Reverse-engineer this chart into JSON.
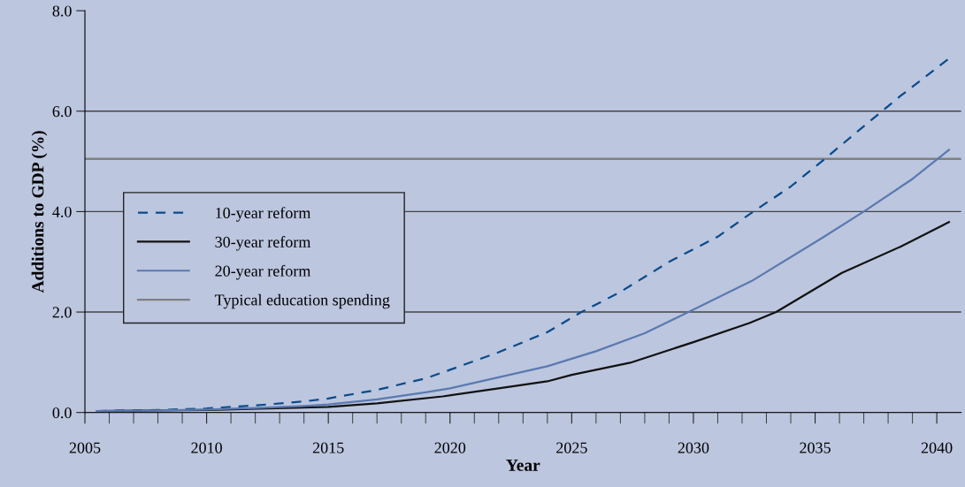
{
  "chart_data": {
    "type": "line",
    "xlabel": "Year",
    "ylabel": "Additions to GDP (%)",
    "xlim": [
      2005,
      2041
    ],
    "ylim": [
      0,
      8
    ],
    "xticks": [
      {
        "value": 2005,
        "label": "2005"
      },
      {
        "value": 2006,
        "label": null
      },
      {
        "value": 2007,
        "label": null
      },
      {
        "value": 2008,
        "label": null
      },
      {
        "value": 2009,
        "label": null
      },
      {
        "value": 2010,
        "label": "2010"
      },
      {
        "value": 2011,
        "label": null
      },
      {
        "value": 2012,
        "label": null
      },
      {
        "value": 2013,
        "label": null
      },
      {
        "value": 2014,
        "label": null
      },
      {
        "value": 2015,
        "label": "2015"
      },
      {
        "value": 2016,
        "label": null
      },
      {
        "value": 2017,
        "label": null
      },
      {
        "value": 2018,
        "label": null
      },
      {
        "value": 2019,
        "label": null
      },
      {
        "value": 2020,
        "label": "2020"
      },
      {
        "value": 2021,
        "label": null
      },
      {
        "value": 2022,
        "label": null
      },
      {
        "value": 2023,
        "label": null
      },
      {
        "value": 2024,
        "label": null
      },
      {
        "value": 2025,
        "label": "2025"
      },
      {
        "value": 2026,
        "label": null
      },
      {
        "value": 2027,
        "label": null
      },
      {
        "value": 2028,
        "label": null
      },
      {
        "value": 2029,
        "label": null
      },
      {
        "value": 2030,
        "label": "2030"
      },
      {
        "value": 2031,
        "label": null
      },
      {
        "value": 2032,
        "label": null
      },
      {
        "value": 2033,
        "label": null
      },
      {
        "value": 2034,
        "label": null
      },
      {
        "value": 2035,
        "label": "2035"
      },
      {
        "value": 2036,
        "label": null
      },
      {
        "value": 2037,
        "label": null
      },
      {
        "value": 2038,
        "label": null
      },
      {
        "value": 2039,
        "label": null
      },
      {
        "value": 2040,
        "label": "2040"
      }
    ],
    "yticks": [
      {
        "value": 0,
        "label": "0.0"
      },
      {
        "value": 2,
        "label": "2.0"
      },
      {
        "value": 4,
        "label": "4.0"
      },
      {
        "value": 6,
        "label": "6.0"
      },
      {
        "value": 8,
        "label": "8.0"
      }
    ],
    "grid": "y",
    "legend": "center left",
    "marker": "none",
    "series": [
      {
        "name": "10-year reform",
        "color": "#0a4a8a",
        "line_style": "dashed",
        "x": [
          2005.5,
          2008,
          2010,
          2012,
          2014,
          2015,
          2017,
          2019,
          2020,
          2022,
          2024,
          2025.4,
          2027,
          2029,
          2031,
          2032.4,
          2034,
          2035.4,
          2037,
          2038.5,
          2040.5
        ],
        "values": [
          0.03,
          0.05,
          0.08,
          0.14,
          0.22,
          0.28,
          0.45,
          0.68,
          0.85,
          1.2,
          1.6,
          2.0,
          2.4,
          3.0,
          3.5,
          3.98,
          4.5,
          5.05,
          5.7,
          6.3,
          7.05
        ]
      },
      {
        "name": "30-year reform",
        "color": "#111111",
        "line_style": "solid",
        "x": [
          2005.5,
          2010,
          2015,
          2017,
          2019.7,
          2022,
          2024,
          2025,
          2027.4,
          2030,
          2032.3,
          2033.4,
          2036.1,
          2038.5,
          2040.5
        ],
        "values": [
          0.03,
          0.05,
          0.11,
          0.18,
          0.32,
          0.48,
          0.62,
          0.75,
          0.99,
          1.4,
          1.78,
          2.0,
          2.78,
          3.3,
          3.79
        ]
      },
      {
        "name": "20-year reform",
        "color": "#5b79b0",
        "line_style": "solid",
        "x": [
          2005.5,
          2008,
          2010,
          2012,
          2014,
          2015,
          2017,
          2019,
          2020,
          2022,
          2024,
          2026,
          2028,
          2029.8,
          2032.4,
          2035.3,
          2037,
          2039,
          2040.5
        ],
        "values": [
          0.03,
          0.04,
          0.06,
          0.09,
          0.13,
          0.16,
          0.26,
          0.4,
          0.48,
          0.7,
          0.92,
          1.22,
          1.58,
          2.0,
          2.62,
          3.48,
          4.0,
          4.65,
          5.23
        ]
      }
    ],
    "ref_lines": [
      {
        "axis": "y",
        "value": 5.05,
        "label": "Typical education spending",
        "color": "#808080",
        "line_style": "solid"
      }
    ]
  }
}
